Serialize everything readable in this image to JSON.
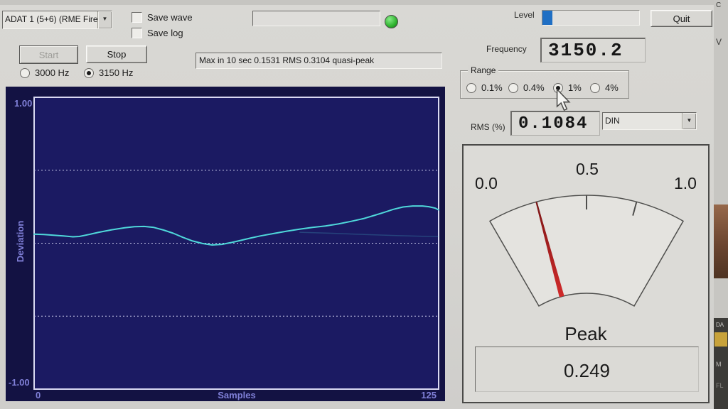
{
  "window": {
    "device_dropdown": {
      "value": "ADAT 1 (5+6) (RME Fire"
    },
    "checkboxes": {
      "save_wave": "Save wave",
      "save_log": "Save log"
    },
    "filename_input": {
      "value": ""
    },
    "level": {
      "label": "Level",
      "percent": 10
    },
    "quit_label": "Quit",
    "start_label": "Start",
    "stop_label": "Stop",
    "freq_radios": [
      {
        "label": "3000 Hz",
        "selected": false
      },
      {
        "label": "3150 Hz",
        "selected": true
      }
    ],
    "status_text": "Max in 10 sec 0.1531 RMS 0.3104 quasi-peak",
    "frequency": {
      "label": "Frequency",
      "value": "3150.2"
    },
    "range": {
      "label": "Range",
      "options": [
        {
          "label": "0.1%",
          "selected": false
        },
        {
          "label": "0.4%",
          "selected": false
        },
        {
          "label": "1%",
          "selected": true
        },
        {
          "label": "4%",
          "selected": false
        }
      ]
    },
    "rms": {
      "label": "RMS (%)",
      "value": "0.1084"
    },
    "weighting_dropdown": {
      "value": "DIN"
    }
  },
  "meter": {
    "scale_labels": [
      "0.0",
      "0.5",
      "1.0"
    ],
    "tick_values": [
      0.25,
      0.5,
      0.75
    ],
    "needle_value": 0.249,
    "angle_span": 60,
    "peak_label": "Peak",
    "peak_value": "0.249"
  },
  "chart_data": {
    "type": "line",
    "title": "",
    "xlabel": "Samples",
    "ylabel": "Deviation",
    "y_top_label": "1.00",
    "y_bottom_label": "-1.00",
    "x_left_label": "0",
    "x_right_label": "125",
    "xlim": [
      0,
      125
    ],
    "ylim": [
      -1,
      1
    ],
    "gridlines": [
      0.5,
      0,
      -0.5
    ],
    "series": [
      {
        "name": "deviation-trace",
        "points": [
          [
            0,
            0.062
          ],
          [
            3,
            0.06
          ],
          [
            6,
            0.055
          ],
          [
            9,
            0.05
          ],
          [
            12,
            0.044
          ],
          [
            14,
            0.046
          ],
          [
            17,
            0.06
          ],
          [
            20,
            0.075
          ],
          [
            24,
            0.092
          ],
          [
            28,
            0.106
          ],
          [
            31,
            0.113
          ],
          [
            34,
            0.115
          ],
          [
            37,
            0.108
          ],
          [
            40,
            0.09
          ],
          [
            43,
            0.068
          ],
          [
            46,
            0.04
          ],
          [
            49,
            0.015
          ],
          [
            52,
            -0.002
          ],
          [
            55,
            -0.012
          ],
          [
            58,
            -0.008
          ],
          [
            61,
            0.005
          ],
          [
            64,
            0.02
          ],
          [
            67,
            0.036
          ],
          [
            70,
            0.05
          ],
          [
            74,
            0.066
          ],
          [
            78,
            0.082
          ],
          [
            82,
            0.096
          ],
          [
            86,
            0.108
          ],
          [
            90,
            0.118
          ],
          [
            94,
            0.132
          ],
          [
            98,
            0.15
          ],
          [
            102,
            0.17
          ],
          [
            105,
            0.19
          ],
          [
            108,
            0.21
          ],
          [
            111,
            0.232
          ],
          [
            114,
            0.248
          ],
          [
            117,
            0.255
          ],
          [
            120,
            0.255
          ],
          [
            122,
            0.25
          ],
          [
            124,
            0.24
          ],
          [
            125,
            0.228
          ]
        ]
      },
      {
        "name": "ghost-trace",
        "points": [
          [
            82,
            0.075
          ],
          [
            92,
            0.068
          ],
          [
            102,
            0.06
          ],
          [
            112,
            0.052
          ],
          [
            120,
            0.047
          ],
          [
            125,
            0.045
          ]
        ]
      }
    ]
  },
  "side_strip": {
    "items": [
      "C",
      "V",
      "DA",
      "M",
      "FL"
    ]
  },
  "colors": {
    "accent_blue": "#1f6fc4",
    "led_green": "#2db92d",
    "needle_red": "#c22222",
    "trace_cyan": "#4fd8da",
    "chart_bg": "#131243",
    "plot_bg": "#1b1a62",
    "chart_label": "#8080d8"
  }
}
